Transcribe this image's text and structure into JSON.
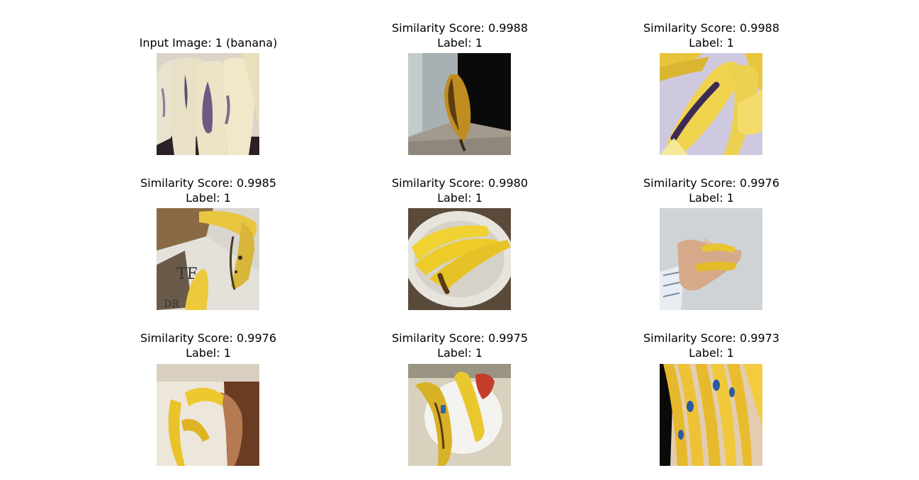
{
  "figure": {
    "panels": [
      {
        "title": "Input Image: 1 (banana)",
        "subtitle": "",
        "scene": "banana-bunch-closeup-icon"
      },
      {
        "title": "Similarity Score: 0.9988",
        "subtitle": "Label: 1",
        "scene": "single-banana-corner-icon"
      },
      {
        "title": "Similarity Score: 0.9988",
        "subtitle": "Label: 1",
        "scene": "banana-bunch-spotted-icon"
      },
      {
        "title": "Similarity Score: 0.9985",
        "subtitle": "Label: 1",
        "scene": "bananas-newspaper-icon"
      },
      {
        "title": "Similarity Score: 0.9980",
        "subtitle": "Label: 1",
        "scene": "bananas-bowl-icon"
      },
      {
        "title": "Similarity Score: 0.9976",
        "subtitle": "Label: 1",
        "scene": "bananas-in-hand-icon"
      },
      {
        "title": "Similarity Score: 0.9976",
        "subtitle": "Label: 1",
        "scene": "bananas-held-box-icon"
      },
      {
        "title": "Similarity Score: 0.9975",
        "subtitle": "Label: 1",
        "scene": "bananas-plate-icon"
      },
      {
        "title": "Similarity Score: 0.9973",
        "subtitle": "Label: 1",
        "scene": "bananas-store-stickers-icon"
      }
    ]
  }
}
